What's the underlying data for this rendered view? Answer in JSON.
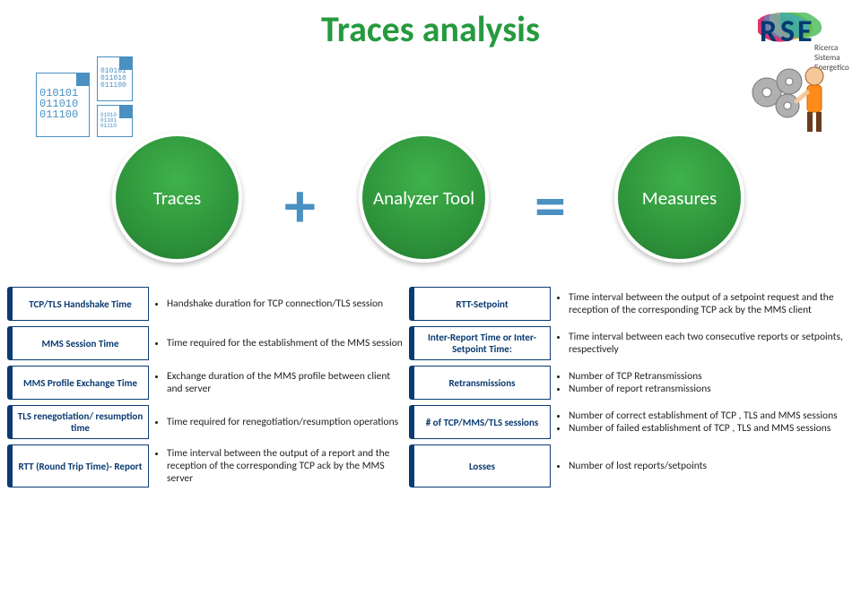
{
  "title": "Traces analysis",
  "logo": {
    "letters": "RSE",
    "colors": [
      "#d4145a",
      "#fbb03b",
      "#39b54a"
    ],
    "subtitle": [
      "Ricerca",
      "Sistema",
      "Energetico"
    ]
  },
  "docs": {
    "bin1": "010101\n011010\n011100",
    "bin2": "010101\n011010\n011100",
    "bin3": "01010\n01101\n01110"
  },
  "flow": {
    "plus_color": "#4a90c2",
    "circles": [
      "Traces",
      "Analyzer Tool",
      "Measures"
    ],
    "circle_bg": "#2c8f38",
    "circle_text": "#ffffff"
  },
  "labels_color": "#0a3b72",
  "rows": [
    {
      "left_label": "TCP/TLS Handshake Time",
      "left_desc": [
        "Handshake duration for TCP connection/TLS session"
      ],
      "mid_label": "RTT-Setpoint",
      "right_desc": [
        "Time interval between the output of a setpoint request and the reception of the corresponding TCP ack by the MMS client"
      ]
    },
    {
      "left_label": "MMS Session Time",
      "left_desc": [
        "Time required for the establishment of the MMS session"
      ],
      "mid_label": "Inter-Report Time or Inter-Setpoint Time:",
      "right_desc": [
        "Time interval between each two consecutive reports or setpoints, respectively"
      ]
    },
    {
      "left_label": "MMS Profile Exchange Time",
      "left_desc": [
        "Exchange duration of the MMS profile between client and server"
      ],
      "mid_label": "Retransmissions",
      "right_desc": [
        "Number of TCP Retransmissions",
        "Number of report retransmissions"
      ]
    },
    {
      "left_label": "TLS renegotiation/ resumption time",
      "left_desc": [
        "Time required for renegotiation/resumption operations"
      ],
      "mid_label": "# of TCP/MMS/TLS sessions",
      "right_desc": [
        "Number of correct establishment of TCP , TLS and MMS sessions",
        "Number of failed establishment of TCP , TLS and MMS sessions"
      ]
    },
    {
      "left_label": "RTT (Round Trip Time)- Report",
      "left_desc": [
        "Time interval between the output of a report and the reception of the corresponding TCP ack by the MMS server"
      ],
      "mid_label": "Losses",
      "right_desc": [
        "Number of lost reports/setpoints"
      ]
    }
  ]
}
